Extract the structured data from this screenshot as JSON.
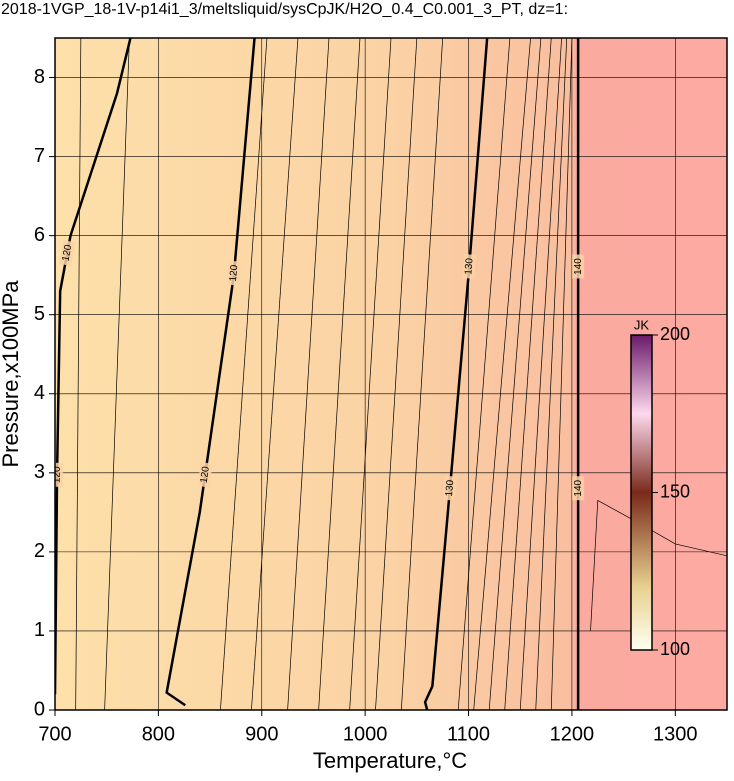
{
  "chart_data": {
    "type": "contour",
    "title": "2018-1VGP_18-1V-p14i1_3/meltsliquid/sysCpJK/H2O_0.4_C0.001_3_PT, dz=1:",
    "x_label": "Temperature,°C",
    "y_label": "Pressure,x100MPa",
    "xlim": [
      700,
      1350
    ],
    "xticks": [
      700,
      800,
      900,
      1000,
      1100,
      1200,
      1300
    ],
    "ylim": [
      0,
      8.5
    ],
    "yticks": [
      0,
      1,
      2,
      3,
      4,
      5,
      6,
      7,
      8
    ],
    "grid": true,
    "colorbar": {
      "label": "JK",
      "lim": [
        100,
        200
      ],
      "ticks": [
        100,
        150,
        200
      ]
    },
    "contours": [
      {
        "level": 120,
        "x": [
          700,
          702,
          705,
          715,
          740,
          760,
          773
        ],
        "y": [
          0.2,
          3,
          5.3,
          6.0,
          7.0,
          7.8,
          8.5
        ]
      },
      {
        "level": 120,
        "x": [
          826,
          808,
          840,
          873,
          893
        ],
        "y": [
          0.06,
          0.22,
          2.5,
          5.5,
          8.5
        ]
      },
      {
        "level": 130,
        "x": [
          1060,
          1058,
          1065,
          1080,
          1100,
          1118
        ],
        "y": [
          0.0,
          0.1,
          0.3,
          2.5,
          5.5,
          8.5
        ]
      },
      {
        "level": 140,
        "x": [
          1206,
          1206
        ],
        "y": [
          0,
          8.5
        ]
      }
    ],
    "minor_contours": [
      {
        "x": [
          720,
          725
        ],
        "y": [
          0,
          8.5
        ]
      },
      {
        "x": [
          748,
          772
        ],
        "y": [
          0,
          8.5
        ]
      },
      {
        "x": [
          860,
          905
        ],
        "y": [
          0,
          8.5
        ]
      },
      {
        "x": [
          890,
          935
        ],
        "y": [
          0,
          8.5
        ]
      },
      {
        "x": [
          925,
          965
        ],
        "y": [
          0,
          8.5
        ]
      },
      {
        "x": [
          955,
          995
        ],
        "y": [
          0,
          8.5
        ]
      },
      {
        "x": [
          985,
          1025
        ],
        "y": [
          0,
          8.5
        ]
      },
      {
        "x": [
          1010,
          1050
        ],
        "y": [
          0,
          8.5
        ]
      },
      {
        "x": [
          1035,
          1075
        ],
        "y": [
          0,
          8.5
        ]
      },
      {
        "x": [
          1090,
          1140
        ],
        "y": [
          0,
          8.5
        ]
      },
      {
        "x": [
          1105,
          1160
        ],
        "y": [
          0,
          8.5
        ]
      },
      {
        "x": [
          1120,
          1170
        ],
        "y": [
          0,
          8.5
        ]
      },
      {
        "x": [
          1135,
          1180
        ],
        "y": [
          0,
          8.5
        ]
      },
      {
        "x": [
          1150,
          1190
        ],
        "y": [
          0,
          8.5
        ]
      },
      {
        "x": [
          1165,
          1195
        ],
        "y": [
          0,
          8.5
        ]
      },
      {
        "x": [
          1180,
          1200
        ],
        "y": [
          0,
          8.5
        ]
      },
      {
        "x": [
          1218,
          1225,
          1260,
          1300,
          1350
        ],
        "y": [
          1.0,
          2.65,
          2.4,
          2.1,
          1.95
        ]
      }
    ]
  }
}
